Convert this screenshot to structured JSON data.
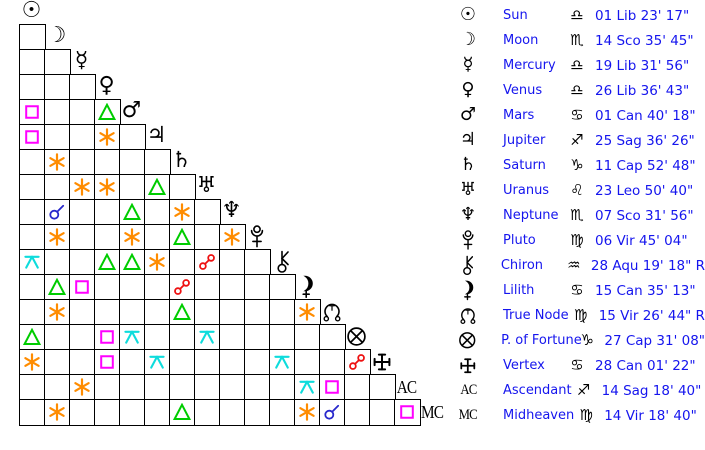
{
  "colors": {
    "background": "#ffffff",
    "grid_line": "#000000",
    "glyph_black": "#000000",
    "text_blue": "#1515ee"
  },
  "aspect_types": {
    "conjunction": {
      "label": "conjunction",
      "color": "#2828cc"
    },
    "sextile": {
      "label": "sextile",
      "color": "#ff8c00"
    },
    "square": {
      "label": "square",
      "color": "#ff00ff"
    },
    "trine": {
      "label": "trine",
      "color": "#00cc00"
    },
    "opposition": {
      "label": "opposition",
      "color": "#ee1111"
    },
    "quincunx": {
      "label": "quincunx",
      "color": "#0edcdc"
    }
  },
  "planets": [
    {
      "id": "sun",
      "name": "Sun",
      "glyph_type": "text",
      "glyph": "☉",
      "sign": "libra",
      "sign_glyph": "♎",
      "position": "01 Lib 23' 17\""
    },
    {
      "id": "moon",
      "name": "Moon",
      "glyph_type": "text",
      "glyph": "☽",
      "sign": "scorpio",
      "sign_glyph": "♏",
      "position": "14 Sco 35' 45\""
    },
    {
      "id": "mercury",
      "name": "Mercury",
      "glyph_type": "text",
      "glyph": "☿",
      "sign": "libra",
      "sign_glyph": "♎",
      "position": "19 Lib 31' 56\""
    },
    {
      "id": "venus",
      "name": "Venus",
      "glyph_type": "text",
      "glyph": "♀",
      "sign": "libra",
      "sign_glyph": "♎",
      "position": "26 Lib 36' 43\""
    },
    {
      "id": "mars",
      "name": "Mars",
      "glyph_type": "text",
      "glyph": "♂",
      "sign": "cancer",
      "sign_glyph": "♋",
      "position": "01 Can 40' 18\""
    },
    {
      "id": "jupiter",
      "name": "Jupiter",
      "glyph_type": "text",
      "glyph": "♃",
      "sign": "sagittarius",
      "sign_glyph": "♐",
      "position": "25 Sag 36' 26\""
    },
    {
      "id": "saturn",
      "name": "Saturn",
      "glyph_type": "text",
      "glyph": "♄",
      "sign": "capricorn",
      "sign_glyph": "♑",
      "position": "11 Cap 52' 48\""
    },
    {
      "id": "uranus",
      "name": "Uranus",
      "glyph_type": "text",
      "glyph": "♅",
      "sign": "leo",
      "sign_glyph": "♌",
      "position": "23 Leo 50' 40\""
    },
    {
      "id": "neptune",
      "name": "Neptune",
      "glyph_type": "text",
      "glyph": "♆",
      "sign": "scorpio",
      "sign_glyph": "♏",
      "position": "07 Sco 31' 56\""
    },
    {
      "id": "pluto",
      "name": "Pluto",
      "glyph_type": "svg",
      "glyph": "pluto",
      "sign": "virgo",
      "sign_glyph": "♍",
      "position": "06 Vir 45' 04\""
    },
    {
      "id": "chiron",
      "name": "Chiron",
      "glyph_type": "svg",
      "glyph": "chiron",
      "sign": "aquarius",
      "sign_glyph": "♒",
      "position": "28 Aqu 19' 18\" R"
    },
    {
      "id": "lilith",
      "name": "Lilith",
      "glyph_type": "svg",
      "glyph": "lilith",
      "sign": "cancer",
      "sign_glyph": "♋",
      "position": "15 Can 35' 13\""
    },
    {
      "id": "true-node",
      "name": "True Node",
      "glyph_type": "svg",
      "glyph": "node",
      "sign": "virgo",
      "sign_glyph": "♍",
      "position": "15 Vir 26' 44\" R"
    },
    {
      "id": "fortune",
      "name": "P. of Fortune",
      "glyph_type": "svg",
      "glyph": "fortune",
      "sign": "capricorn",
      "sign_glyph": "♑",
      "position": "27 Cap 31' 08\""
    },
    {
      "id": "vertex",
      "name": "Vertex",
      "glyph_type": "svg",
      "glyph": "vertex",
      "sign": "cancer",
      "sign_glyph": "♋",
      "position": "28 Can 01' 22\""
    },
    {
      "id": "ascendant",
      "name": "Ascendant",
      "glyph_type": "label",
      "glyph": "AC",
      "sign": "sagittarius",
      "sign_glyph": "♐",
      "position": "14 Sag 18' 40\""
    },
    {
      "id": "midheaven",
      "name": "Midheaven",
      "glyph_type": "label",
      "glyph": "MC",
      "sign": "virgo",
      "sign_glyph": "♍",
      "position": "14 Vir 18' 40\""
    }
  ],
  "aspect_grid_note": "row/col are 1-based indices into planets[]; cell = aspect between planets[row-1] and planets[col-1]",
  "aspects": [
    {
      "row": 5,
      "col": 1,
      "type": "square"
    },
    {
      "row": 5,
      "col": 4,
      "type": "trine"
    },
    {
      "row": 6,
      "col": 1,
      "type": "square"
    },
    {
      "row": 6,
      "col": 4,
      "type": "sextile"
    },
    {
      "row": 7,
      "col": 2,
      "type": "sextile"
    },
    {
      "row": 8,
      "col": 3,
      "type": "sextile"
    },
    {
      "row": 8,
      "col": 4,
      "type": "sextile"
    },
    {
      "row": 8,
      "col": 6,
      "type": "trine"
    },
    {
      "row": 9,
      "col": 2,
      "type": "conjunction"
    },
    {
      "row": 9,
      "col": 5,
      "type": "trine"
    },
    {
      "row": 9,
      "col": 7,
      "type": "sextile"
    },
    {
      "row": 10,
      "col": 2,
      "type": "sextile"
    },
    {
      "row": 10,
      "col": 5,
      "type": "sextile"
    },
    {
      "row": 10,
      "col": 7,
      "type": "trine"
    },
    {
      "row": 10,
      "col": 9,
      "type": "sextile"
    },
    {
      "row": 11,
      "col": 1,
      "type": "quincunx"
    },
    {
      "row": 11,
      "col": 4,
      "type": "trine"
    },
    {
      "row": 11,
      "col": 5,
      "type": "trine"
    },
    {
      "row": 11,
      "col": 6,
      "type": "sextile"
    },
    {
      "row": 11,
      "col": 8,
      "type": "opposition"
    },
    {
      "row": 12,
      "col": 2,
      "type": "trine"
    },
    {
      "row": 12,
      "col": 3,
      "type": "square"
    },
    {
      "row": 12,
      "col": 7,
      "type": "opposition"
    },
    {
      "row": 13,
      "col": 2,
      "type": "sextile"
    },
    {
      "row": 13,
      "col": 7,
      "type": "trine"
    },
    {
      "row": 13,
      "col": 12,
      "type": "sextile"
    },
    {
      "row": 14,
      "col": 1,
      "type": "trine"
    },
    {
      "row": 14,
      "col": 4,
      "type": "square"
    },
    {
      "row": 14,
      "col": 5,
      "type": "quincunx"
    },
    {
      "row": 14,
      "col": 8,
      "type": "quincunx"
    },
    {
      "row": 15,
      "col": 1,
      "type": "sextile"
    },
    {
      "row": 15,
      "col": 4,
      "type": "square"
    },
    {
      "row": 15,
      "col": 6,
      "type": "quincunx"
    },
    {
      "row": 15,
      "col": 11,
      "type": "quincunx"
    },
    {
      "row": 15,
      "col": 14,
      "type": "opposition"
    },
    {
      "row": 16,
      "col": 3,
      "type": "sextile"
    },
    {
      "row": 16,
      "col": 12,
      "type": "quincunx"
    },
    {
      "row": 16,
      "col": 13,
      "type": "square"
    },
    {
      "row": 17,
      "col": 2,
      "type": "sextile"
    },
    {
      "row": 17,
      "col": 7,
      "type": "trine"
    },
    {
      "row": 17,
      "col": 12,
      "type": "sextile"
    },
    {
      "row": 17,
      "col": 13,
      "type": "conjunction"
    },
    {
      "row": 17,
      "col": 16,
      "type": "square"
    }
  ]
}
